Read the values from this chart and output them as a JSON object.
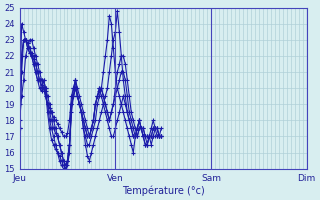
{
  "xlabel": "Température (°c)",
  "ylabel": "",
  "ylim": [
    15,
    25
  ],
  "yticks": [
    15,
    16,
    17,
    18,
    19,
    20,
    21,
    22,
    23,
    24,
    25
  ],
  "background_color": "#d8eef0",
  "line_color": "#1a1aaa",
  "grid_color": "#b0d0d8",
  "day_labels": [
    "Jeu",
    "Ven",
    "Sam",
    "Dim"
  ],
  "day_positions": [
    0,
    48,
    96,
    144
  ],
  "series": [
    [
      18.0,
      19.5,
      20.5,
      22.0,
      22.5,
      23.0,
      23.0,
      22.5,
      22.0,
      21.5,
      21.0,
      20.5,
      20.0,
      19.5,
      19.0,
      18.8,
      18.5,
      18.2,
      18.0,
      17.8,
      17.5,
      17.3,
      17.0,
      17.0,
      17.2,
      18.0,
      19.5,
      20.0,
      20.5,
      19.5,
      19.0,
      18.5,
      17.5,
      17.0,
      16.5,
      16.5,
      17.0,
      17.5,
      18.0,
      19.0,
      19.5,
      20.0,
      21.0,
      22.0,
      23.0,
      24.5,
      24.0,
      22.5,
      21.0,
      20.0,
      19.5,
      19.0,
      18.5,
      18.0,
      17.5,
      17.0,
      16.5,
      16.0,
      17.0,
      17.5,
      18.0,
      17.5,
      17.0,
      16.5,
      16.5,
      17.0,
      17.5,
      18.0,
      17.5,
      17.0,
      17.0,
      17.0
    ],
    [
      17.5,
      21.0,
      23.0,
      23.0,
      22.8,
      22.5,
      22.0,
      21.5,
      21.0,
      20.5,
      20.0,
      19.8,
      20.5,
      20.0,
      19.0,
      18.0,
      17.5,
      17.0,
      16.5,
      16.0,
      15.5,
      15.2,
      15.0,
      15.0,
      15.5,
      16.5,
      19.0,
      19.5,
      20.0,
      19.5,
      19.0,
      18.5,
      18.0,
      17.5,
      17.0,
      17.0,
      17.5,
      18.0,
      19.0,
      19.5,
      20.0,
      19.5,
      19.0,
      18.5,
      18.0,
      17.5,
      17.0,
      17.0,
      17.5,
      18.0,
      18.5,
      19.0,
      19.5,
      19.0,
      18.5,
      18.0,
      17.5,
      17.0,
      17.0,
      17.5,
      18.0,
      17.5,
      17.0,
      16.5,
      16.5,
      17.0,
      16.5,
      17.0,
      17.0,
      17.0,
      17.0,
      17.0
    ],
    [
      19.0,
      24.0,
      23.5,
      23.0,
      22.5,
      22.2,
      22.0,
      21.5,
      21.0,
      20.5,
      20.5,
      20.2,
      20.0,
      19.8,
      18.5,
      17.5,
      16.8,
      16.5,
      16.2,
      16.0,
      15.8,
      15.5,
      15.2,
      15.0,
      15.2,
      16.0,
      19.0,
      19.5,
      20.5,
      19.5,
      19.0,
      18.5,
      17.5,
      16.5,
      15.8,
      15.5,
      16.0,
      16.5,
      17.0,
      17.5,
      18.0,
      18.5,
      19.0,
      19.5,
      20.0,
      21.0,
      22.0,
      23.0,
      23.5,
      24.8,
      23.5,
      22.0,
      20.5,
      19.5,
      18.5,
      18.0,
      17.5,
      17.0,
      17.0,
      17.5,
      18.0,
      17.5,
      17.0,
      17.0,
      16.5,
      17.0,
      17.0,
      17.0,
      17.5,
      17.5,
      17.0,
      17.0
    ],
    [
      17.5,
      22.0,
      23.0,
      23.0,
      22.8,
      22.5,
      22.2,
      22.0,
      21.5,
      21.0,
      20.5,
      20.5,
      20.5,
      20.0,
      19.5,
      19.0,
      18.5,
      18.0,
      17.5,
      17.0,
      16.5,
      16.0,
      15.5,
      15.2,
      15.5,
      16.5,
      18.5,
      19.5,
      20.0,
      19.5,
      19.0,
      18.5,
      18.0,
      17.5,
      17.0,
      17.0,
      17.5,
      18.0,
      19.0,
      19.5,
      19.8,
      20.0,
      19.5,
      19.0,
      18.5,
      18.0,
      18.5,
      19.0,
      19.5,
      20.0,
      20.5,
      21.0,
      21.0,
      20.5,
      19.5,
      18.5,
      18.0,
      17.5,
      17.0,
      17.0,
      17.5,
      17.5,
      17.5,
      17.0,
      17.0,
      17.0,
      17.0,
      17.5,
      17.5,
      17.5,
      17.0,
      17.0
    ],
    [
      17.5,
      22.0,
      23.0,
      23.0,
      22.5,
      22.2,
      22.0,
      21.8,
      21.5,
      21.0,
      20.5,
      20.0,
      20.0,
      19.5,
      19.0,
      18.5,
      18.0,
      17.5,
      17.2,
      17.0,
      16.5,
      16.0,
      15.5,
      15.2,
      15.5,
      16.5,
      19.0,
      20.0,
      20.5,
      20.0,
      19.5,
      19.0,
      18.5,
      18.0,
      17.5,
      17.0,
      17.5,
      18.0,
      19.0,
      19.5,
      20.0,
      20.0,
      19.5,
      19.0,
      18.5,
      18.0,
      18.5,
      19.0,
      20.0,
      21.0,
      21.5,
      22.0,
      22.0,
      21.5,
      20.5,
      19.5,
      18.5,
      18.0,
      17.5,
      17.0,
      17.5,
      17.5,
      17.5,
      17.0,
      17.0,
      17.0,
      17.0,
      17.5,
      17.5,
      17.5,
      17.0,
      17.5
    ]
  ]
}
